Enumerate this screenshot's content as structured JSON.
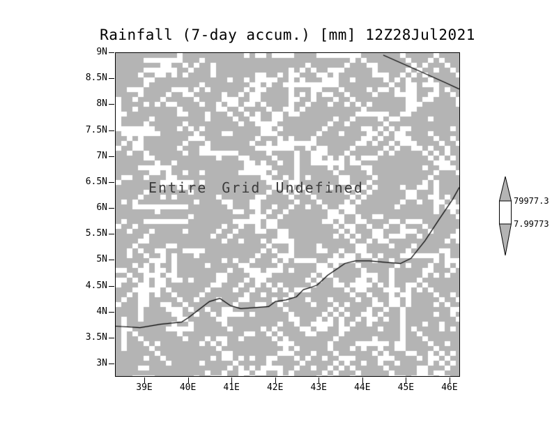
{
  "title": "Rainfall (7-day accum.) [mm] 12Z28Jul2021",
  "center_message": "Entire Grid Undefined",
  "colors": {
    "undefined_gray": "#b4b4b4",
    "speckle": "#ffffff",
    "coastline": "#000000",
    "colorbar_band_white": "#ffffff",
    "colorbar_arrow_gray": "#b4b4b4"
  },
  "chart_data": {
    "type": "heatmap",
    "title": "Rainfall (7-day accum.) [mm] 12Z28Jul2021",
    "status": "Entire Grid Undefined",
    "values": "all_undefined",
    "x_ticks": [
      "39E",
      "40E",
      "41E",
      "42E",
      "43E",
      "44E",
      "45E",
      "46E"
    ],
    "y_ticks": [
      "9N",
      "8.5N",
      "8N",
      "7.5N",
      "7N",
      "6.5N",
      "6N",
      "5.5N",
      "5N",
      "4.5N",
      "4N",
      "3.5N",
      "3N"
    ],
    "lon_range": [
      38.33,
      46.24
    ],
    "lat_range": [
      2.72,
      9.0
    ],
    "colorbar": {
      "labels": [
        "79977.3",
        "7.99773"
      ],
      "orientation": "vertical"
    },
    "coastlines": [
      [
        [
          44.49,
          8.96
        ],
        [
          45.29,
          8.66
        ],
        [
          45.93,
          8.42
        ],
        [
          46.24,
          8.3
        ]
      ],
      [
        [
          38.33,
          3.69
        ],
        [
          38.89,
          3.66
        ],
        [
          39.37,
          3.73
        ],
        [
          39.85,
          3.77
        ],
        [
          40.01,
          3.86
        ],
        [
          40.49,
          4.17
        ],
        [
          40.73,
          4.23
        ],
        [
          40.97,
          4.09
        ],
        [
          41.21,
          4.03
        ],
        [
          41.53,
          4.05
        ],
        [
          41.85,
          4.07
        ],
        [
          42.01,
          4.17
        ],
        [
          42.25,
          4.2
        ],
        [
          42.49,
          4.26
        ],
        [
          42.65,
          4.4
        ],
        [
          42.81,
          4.44
        ],
        [
          42.97,
          4.49
        ],
        [
          43.21,
          4.68
        ],
        [
          43.37,
          4.77
        ],
        [
          43.61,
          4.91
        ],
        [
          43.85,
          4.96
        ],
        [
          44.17,
          4.96
        ],
        [
          44.57,
          4.93
        ],
        [
          44.89,
          4.91
        ],
        [
          45.13,
          5.01
        ],
        [
          45.45,
          5.35
        ],
        [
          45.77,
          5.76
        ],
        [
          46.09,
          6.16
        ],
        [
          46.24,
          6.39
        ]
      ]
    ]
  },
  "layout_hints": {
    "speckle_note": "undefined grid cells drawn as white streaks over gray field"
  }
}
